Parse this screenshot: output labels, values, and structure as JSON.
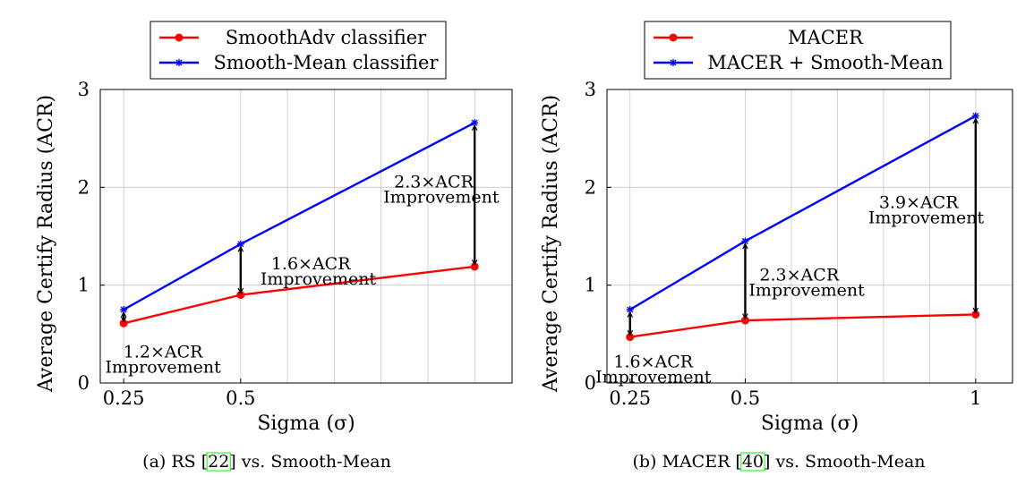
{
  "chart_data": [
    {
      "type": "line",
      "caption": {
        "prefix": "(a) RS [",
        "ref": "22",
        "suffix": "] vs. Smooth-Mean"
      },
      "xlabel": "Sigma (σ)",
      "ylabel": "Average Certify Radius (ACR)",
      "x": [
        0.25,
        0.5,
        1
      ],
      "xlim": [
        0.2,
        1.08
      ],
      "ylim": [
        0,
        3
      ],
      "xticks": [
        {
          "value": 0.25,
          "label": "0.25"
        },
        {
          "value": 0.5,
          "label": "0.5"
        }
      ],
      "yticks": [
        {
          "value": 0,
          "label": "0"
        },
        {
          "value": 1,
          "label": "1"
        },
        {
          "value": 2,
          "label": "2"
        },
        {
          "value": 3,
          "label": "3"
        }
      ],
      "xgrid": [
        0.25,
        0.5,
        0.6,
        0.7,
        0.8,
        0.9,
        1.0
      ],
      "ygrid": [
        1,
        2,
        3
      ],
      "grid": true,
      "legend_position": "top-center",
      "series": [
        {
          "name": "SmoothAdv classifier",
          "color": "#ff0000",
          "marker": "circle",
          "values": [
            0.61,
            0.9,
            1.19
          ]
        },
        {
          "name": "Smooth-Mean classifier",
          "color": "#0000ff",
          "marker": "star",
          "values": [
            0.75,
            1.42,
            2.66
          ]
        }
      ],
      "annotations": [
        {
          "x": 0.25,
          "from": 0.61,
          "to": 0.75,
          "line1": "1.2×ACR",
          "line2": "Improvement"
        },
        {
          "x": 0.5,
          "from": 0.9,
          "to": 1.42,
          "line1": "1.6×ACR",
          "line2": "Improvement"
        },
        {
          "x": 1,
          "from": 1.19,
          "to": 2.66,
          "line1": "2.3×ACR",
          "line2": "Improvement"
        }
      ]
    },
    {
      "type": "line",
      "caption": {
        "prefix": "(b) MACER [",
        "ref": "40",
        "suffix": "] vs. Smooth-Mean"
      },
      "xlabel": "Sigma (σ)",
      "ylabel": "Average Certify Radius (ACR)",
      "x": [
        0.25,
        0.5,
        1
      ],
      "xlim": [
        0.2,
        1.08
      ],
      "ylim": [
        0,
        3
      ],
      "xticks": [
        {
          "value": 0.25,
          "label": "0.25"
        },
        {
          "value": 0.5,
          "label": "0.5"
        },
        {
          "value": 1,
          "label": "1"
        }
      ],
      "yticks": [
        {
          "value": 0,
          "label": "0"
        },
        {
          "value": 1,
          "label": "1"
        },
        {
          "value": 2,
          "label": "2"
        },
        {
          "value": 3,
          "label": "3"
        }
      ],
      "xgrid": [
        0.25,
        0.5,
        0.6,
        0.7,
        0.8,
        0.9,
        1.0
      ],
      "ygrid": [
        1,
        2,
        3
      ],
      "grid": true,
      "legend_position": "top-center",
      "series": [
        {
          "name": "MACER",
          "color": "#ff0000",
          "marker": "circle",
          "values": [
            0.47,
            0.64,
            0.7
          ]
        },
        {
          "name": "MACER + Smooth-Mean",
          "color": "#0000ff",
          "marker": "star",
          "values": [
            0.75,
            1.45,
            2.73
          ]
        }
      ],
      "annotations": [
        {
          "x": 0.25,
          "from": 0.47,
          "to": 0.75,
          "line1": "1.6×ACR",
          "line2": "Improvement"
        },
        {
          "x": 0.5,
          "from": 0.64,
          "to": 1.45,
          "line1": "2.3×ACR",
          "line2": "Improvement"
        },
        {
          "x": 1,
          "from": 0.7,
          "to": 2.73,
          "line1": "3.9×ACR",
          "line2": "Improvement"
        }
      ]
    }
  ]
}
